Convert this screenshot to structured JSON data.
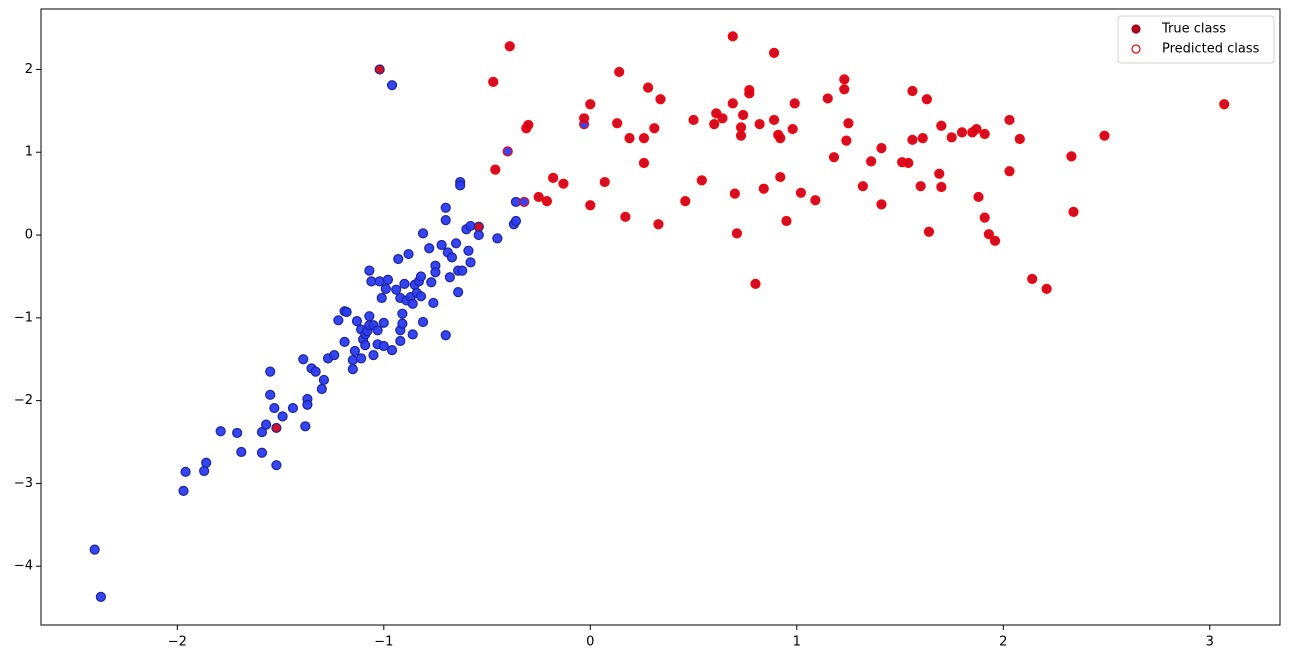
{
  "chart_data": {
    "type": "scatter",
    "xlim": [
      -2.66,
      3.34
    ],
    "ylim": [
      -4.71,
      2.73
    ],
    "xticks": [
      {
        "value": -2,
        "label": "−2"
      },
      {
        "value": -1,
        "label": "−1"
      },
      0,
      1,
      2,
      3
    ],
    "yticks": [
      {
        "value": -4,
        "label": "−4"
      },
      {
        "value": -3,
        "label": "−3"
      },
      {
        "value": -2,
        "label": "−2"
      },
      {
        "value": -1,
        "label": "−1"
      },
      0,
      1,
      2
    ],
    "legend": [
      {
        "name": "True class",
        "color": "#a8001e",
        "marker": "filled"
      },
      {
        "name": "Predicted class",
        "color": "#ff0000",
        "marker": "hollow"
      }
    ],
    "legend_loc": "upper right",
    "series": [
      {
        "color": "#2b3bf2",
        "edgecolor": "#1c2599",
        "x": [
          -2.4,
          -2.37,
          -1.97,
          -1.96,
          -1.87,
          -1.86,
          -1.79,
          -1.71,
          -1.69,
          -1.59,
          -1.59,
          -1.57,
          -1.55,
          -1.55,
          -1.53,
          -1.52,
          -1.49,
          -1.44,
          -1.39,
          -1.37,
          -1.37,
          -1.38,
          -1.35,
          -1.33,
          -1.3,
          -1.29,
          -1.27,
          -1.24,
          -1.22,
          -1.19,
          -1.19,
          -1.18,
          -1.15,
          -1.15,
          -1.14,
          -1.13,
          -1.11,
          -1.11,
          -1.1,
          -1.09,
          -1.09,
          -1.08,
          -1.07,
          -1.07,
          -1.07,
          -1.06,
          -1.05,
          -1.05,
          -1.03,
          -1.03,
          -1.02,
          -1.01,
          -1.0,
          -1.0,
          -0.99,
          -0.98,
          -0.96,
          -0.94,
          -0.93,
          -0.92,
          -0.92,
          -0.92,
          -0.91,
          -0.91,
          -0.9,
          -0.89,
          -0.88,
          -0.87,
          -0.86,
          -0.86,
          -0.85,
          -0.84,
          -0.83,
          -0.82,
          -0.82,
          -0.81,
          -0.81,
          -0.78,
          -0.77,
          -0.76,
          -0.75,
          -0.75,
          -0.72,
          -0.7,
          -0.7,
          -0.7,
          -0.69,
          -0.68,
          -0.67,
          -0.65,
          -0.64,
          -0.64,
          -0.63,
          -0.63,
          -0.62,
          -0.6,
          -0.59,
          -0.58,
          -0.58,
          -0.54,
          -0.45,
          -0.37,
          -0.36,
          -0.36,
          -0.96
        ],
        "y": [
          -3.8,
          -4.37,
          -3.09,
          -2.86,
          -2.85,
          -2.75,
          -2.37,
          -2.39,
          -2.62,
          -2.63,
          -2.38,
          -2.29,
          -1.65,
          -1.93,
          -2.09,
          -2.78,
          -2.19,
          -2.09,
          -1.5,
          -1.98,
          -2.05,
          -2.31,
          -1.61,
          -1.65,
          -1.86,
          -1.75,
          -1.49,
          -1.45,
          -1.03,
          -1.29,
          -0.92,
          -0.93,
          -1.51,
          -1.62,
          -1.4,
          -1.04,
          -1.14,
          -1.49,
          -1.26,
          -1.33,
          -1.2,
          -1.16,
          -0.98,
          -1.09,
          -0.43,
          -0.56,
          -1.45,
          -1.09,
          -1.15,
          -1.32,
          -0.56,
          -0.76,
          -1.06,
          -1.34,
          -0.65,
          -0.54,
          -1.39,
          -0.66,
          -0.29,
          -1.15,
          -0.76,
          -1.28,
          -1.07,
          -0.95,
          -0.59,
          -0.79,
          -0.23,
          -0.75,
          -0.83,
          -1.2,
          -0.6,
          -0.7,
          -0.56,
          -0.74,
          -0.5,
          -1.05,
          0.02,
          -0.16,
          -0.57,
          -0.82,
          -0.37,
          -0.45,
          -0.12,
          -1.21,
          0.18,
          0.33,
          -0.21,
          -0.51,
          -0.27,
          -0.1,
          -0.43,
          -0.69,
          0.64,
          0.6,
          -0.43,
          0.07,
          -0.19,
          0.11,
          -0.33,
          0.0,
          -0.04,
          0.13,
          0.17,
          0.4,
          1.81
        ]
      },
      {
        "color": "#d0021b",
        "edgecolor": "#1c2599",
        "x": [
          -1.02,
          -1.52,
          -0.54
        ],
        "y": [
          2.0,
          -2.33,
          0.1
        ]
      },
      {
        "color": "#2b3bf2",
        "edgecolor": "#ff0000",
        "x": [
          -0.4,
          -0.03,
          -0.32
        ],
        "y": [
          1.01,
          1.34,
          0.4
        ]
      },
      {
        "color": "#d0021b",
        "edgecolor": "#ff0000",
        "x": [
          -0.47,
          -0.39,
          -0.46,
          -0.31,
          -0.3,
          -0.18,
          -0.13,
          -0.25,
          -0.21,
          -0.03,
          0.0,
          0.0,
          0.07,
          0.14,
          0.13,
          0.19,
          0.17,
          0.26,
          0.28,
          0.26,
          0.31,
          0.33,
          0.34,
          0.46,
          0.5,
          0.54,
          0.6,
          0.61,
          0.64,
          0.69,
          0.69,
          0.7,
          0.71,
          0.73,
          0.73,
          0.74,
          0.77,
          0.77,
          0.8,
          0.82,
          0.84,
          0.89,
          0.89,
          0.91,
          0.92,
          0.92,
          0.95,
          0.99,
          0.98,
          1.02,
          1.09,
          1.15,
          1.18,
          1.23,
          1.23,
          1.24,
          1.25,
          1.32,
          1.36,
          1.41,
          1.41,
          1.51,
          1.54,
          1.56,
          1.56,
          1.61,
          1.6,
          1.63,
          1.64,
          1.69,
          1.7,
          1.7,
          1.75,
          1.8,
          1.85,
          1.87,
          1.88,
          1.91,
          1.91,
          1.93,
          1.96,
          2.03,
          2.03,
          2.08,
          2.14,
          2.21,
          2.33,
          2.34,
          2.49,
          3.07
        ],
        "y": [
          1.85,
          2.28,
          0.79,
          1.29,
          1.33,
          0.69,
          0.62,
          0.46,
          0.41,
          1.41,
          1.58,
          0.36,
          0.64,
          1.97,
          1.35,
          1.17,
          0.22,
          1.17,
          1.78,
          0.87,
          1.29,
          0.13,
          1.64,
          0.41,
          1.39,
          0.66,
          1.34,
          1.47,
          1.41,
          1.59,
          2.4,
          0.5,
          0.02,
          1.3,
          1.2,
          1.45,
          1.75,
          1.71,
          -0.59,
          1.34,
          0.56,
          1.39,
          2.2,
          1.21,
          0.7,
          1.17,
          0.17,
          1.59,
          1.28,
          0.51,
          0.42,
          1.65,
          0.94,
          1.88,
          1.76,
          1.14,
          1.35,
          0.59,
          0.89,
          0.37,
          1.05,
          0.88,
          0.87,
          1.74,
          1.15,
          1.17,
          0.59,
          1.64,
          0.04,
          0.74,
          1.32,
          0.58,
          1.18,
          1.24,
          1.24,
          1.28,
          0.46,
          1.22,
          0.21,
          0.01,
          -0.07,
          0.77,
          1.39,
          1.16,
          -0.53,
          -0.65,
          0.95,
          0.28,
          1.2,
          1.58
        ]
      }
    ]
  }
}
